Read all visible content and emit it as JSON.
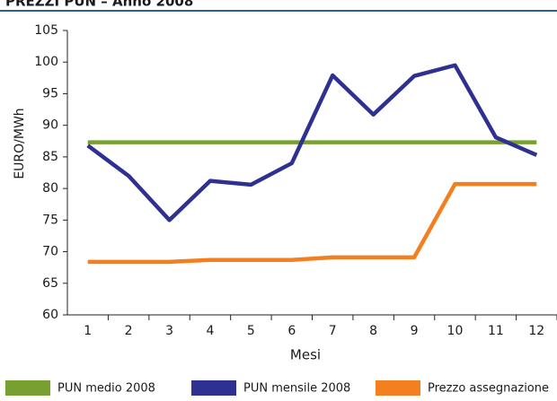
{
  "chart_data": {
    "type": "line",
    "title": "PREZZI PUN – Anno 2008",
    "xlabel": "Mesi",
    "ylabel": "EURO/MWh",
    "categories": [
      "1",
      "2",
      "3",
      "4",
      "5",
      "6",
      "7",
      "8",
      "9",
      "10",
      "11",
      "12"
    ],
    "series": [
      {
        "name": "PUN medio 2008",
        "color": "#77a030",
        "values": [
          87.3,
          87.3,
          87.3,
          87.3,
          87.3,
          87.3,
          87.3,
          87.3,
          87.3,
          87.3,
          87.3,
          87.3
        ]
      },
      {
        "name": "PUN mensile 2008",
        "color": "#2e3192",
        "values": [
          86.8,
          82,
          75,
          81.2,
          80.6,
          84,
          97.9,
          91.7,
          97.8,
          99.5,
          88.1,
          85.3
        ]
      },
      {
        "name": "Prezzo assegnazione",
        "color": "#f47f20",
        "values": [
          68.4,
          68.4,
          68.4,
          68.7,
          68.7,
          68.7,
          69.1,
          69.1,
          69.1,
          80.7,
          80.7,
          80.7
        ]
      }
    ],
    "ylim": [
      60,
      105
    ],
    "yticks": [
      60,
      65,
      70,
      75,
      80,
      85,
      90,
      95,
      100,
      105
    ],
    "legend": "bottom"
  }
}
